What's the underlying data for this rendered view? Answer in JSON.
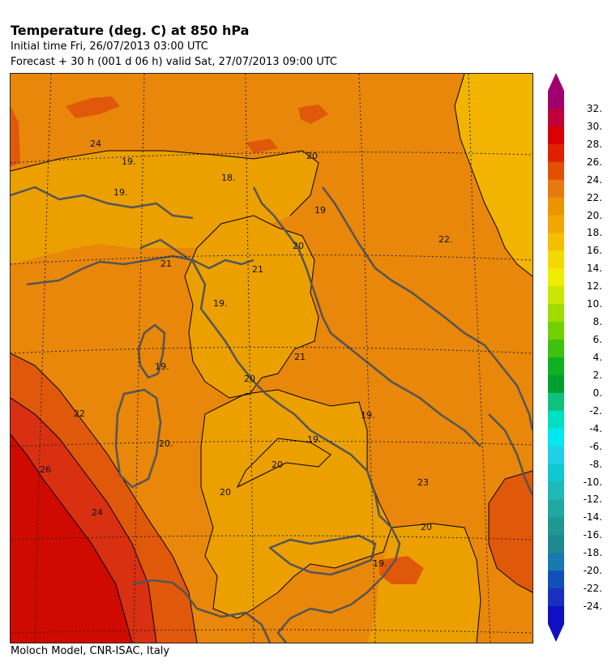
{
  "header": {
    "title": "Temperature (deg. C) at 850 hPa",
    "initial_line": "Initial time  Fri, 26/07/2013  03:00 UTC",
    "forecast_line": "Forecast  +  30 h  (001 d 06 h)  valid Sat, 27/07/2013 09:00 UTC"
  },
  "footer": "Moloch Model, CNR-ISAC, Italy",
  "colors": {
    "t16_18": "#f2b400",
    "t18_20": "#eba000",
    "t20_22": "#e8870a",
    "t22_24": "#e0580a",
    "t24_26": "#d83010",
    "t26_28": "#cf0a00",
    "coast": "#555555",
    "contour": "#000000"
  },
  "legend": {
    "labels": [
      "32.",
      "30.",
      "28.",
      "26.",
      "24.",
      "22.",
      "20.",
      "18.",
      "16.",
      "14.",
      "12.",
      "10.",
      "8.",
      "6.",
      "4.",
      "2.",
      "0.",
      "-2.",
      "-4.",
      "-6.",
      "-8.",
      "-10.",
      "-12.",
      "-14.",
      "-16.",
      "-18.",
      "-20.",
      "-22.",
      "-24."
    ],
    "colors": [
      "#a0006e",
      "#c0003a",
      "#d80000",
      "#e02000",
      "#e05000",
      "#e87810",
      "#eb9400",
      "#eea800",
      "#f2c000",
      "#f5d800",
      "#f0ec00",
      "#c8e600",
      "#a0dc00",
      "#70d000",
      "#40c010",
      "#10b020",
      "#00a030",
      "#10c080",
      "#00e0c0",
      "#00e8f0",
      "#20d0e8",
      "#10c8d0",
      "#20b8b8",
      "#20a8a0",
      "#209890",
      "#208890",
      "#1878b0",
      "#1050b8",
      "#1830c0",
      "#1010c0"
    ]
  },
  "contour_labels": [
    "24",
    "19.",
    "19.",
    "18.",
    "20",
    "19",
    "20",
    "21",
    "21",
    "19.",
    "22.",
    "19.",
    "20",
    "21",
    "19.",
    "20.",
    "19.",
    "20",
    "20",
    "23",
    "20",
    "19.",
    "22",
    "26",
    "24"
  ]
}
